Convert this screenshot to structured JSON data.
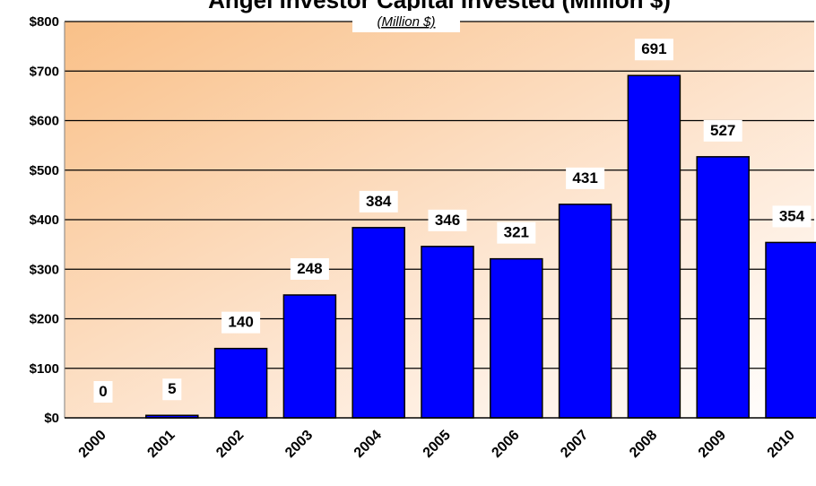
{
  "chart_data": {
    "type": "bar",
    "title": "Angel Investor Capital Invested (Million $)",
    "subtitle": "(Million $)",
    "xlabel": "",
    "ylabel": "",
    "categories": [
      "2000",
      "2001",
      "2002",
      "2003",
      "2004",
      "2005",
      "2006",
      "2007",
      "2008",
      "2009",
      "2010"
    ],
    "values": [
      0,
      5,
      140,
      248,
      384,
      346,
      321,
      431,
      691,
      527,
      354
    ],
    "data_labels": [
      "0",
      "5",
      "140",
      "248",
      "384",
      "346",
      "321",
      "431",
      "691",
      "527",
      "354"
    ],
    "y_ticks": [
      0,
      100,
      200,
      300,
      400,
      500,
      600,
      700,
      800
    ],
    "y_tick_labels": [
      "$0",
      "$100",
      "$200",
      "$300",
      "$400",
      "$500",
      "$600",
      "$700",
      "$800"
    ],
    "ylim": [
      0,
      800
    ],
    "grid": true,
    "legend": "none",
    "colors": {
      "bar": "#0000ff",
      "bar_outline": "#000000",
      "background_start": "#f9c088",
      "background_end": "#ffffff",
      "gridline": "#000000"
    }
  }
}
